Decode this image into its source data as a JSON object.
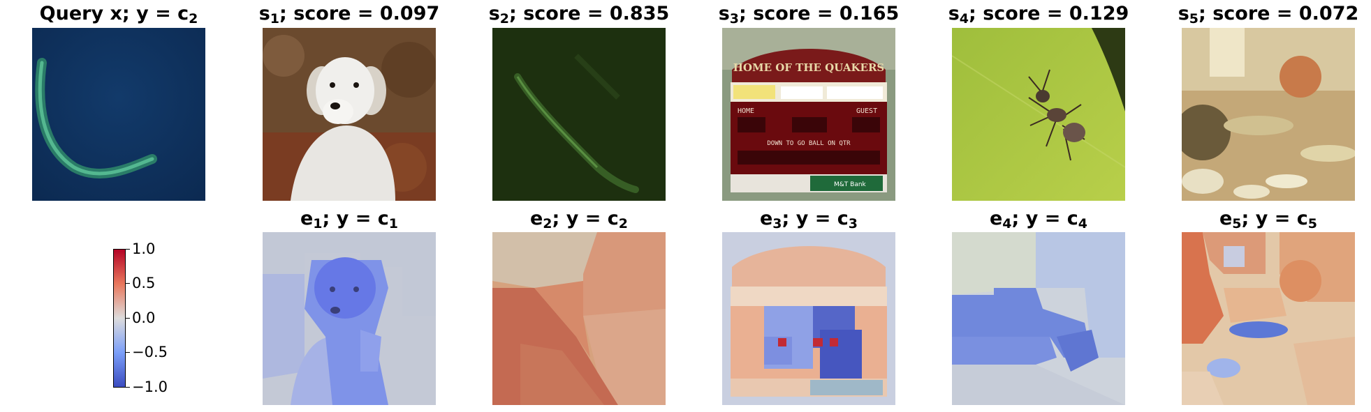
{
  "top_row": [
    {
      "title_main": "Query x; y = c",
      "title_sub": "2",
      "title_tail": ""
    },
    {
      "title_main": "s",
      "title_sub": "1",
      "title_tail": "; score = 0.097"
    },
    {
      "title_main": "s",
      "title_sub": "2",
      "title_tail": "; score = 0.835"
    },
    {
      "title_main": "s",
      "title_sub": "3",
      "title_tail": "; score = 0.165"
    },
    {
      "title_main": "s",
      "title_sub": "4",
      "title_tail": "; score = 0.129"
    },
    {
      "title_main": "s",
      "title_sub": "5",
      "title_tail": "; score = 0.072"
    }
  ],
  "bottom_row": [
    {
      "title_main": "e",
      "title_sub": "1",
      "title_mid": "; y = c",
      "title_sub2": "1"
    },
    {
      "title_main": "e",
      "title_sub": "2",
      "title_mid": "; y = c",
      "title_sub2": "2"
    },
    {
      "title_main": "e",
      "title_sub": "3",
      "title_mid": "; y = c",
      "title_sub2": "3"
    },
    {
      "title_main": "e",
      "title_sub": "4",
      "title_mid": "; y = c",
      "title_sub2": "4"
    },
    {
      "title_main": "e",
      "title_sub": "5",
      "title_mid": "; y = c",
      "title_sub2": "5"
    }
  ],
  "scoreboard": {
    "banner": "HOME OF THE QUAKERS",
    "home": "HOME",
    "guest": "GUEST",
    "row_labels": "DOWN  TO GO  BALL ON  QTR",
    "sponsor": "M&T Bank"
  },
  "colorbar": {
    "ticks": [
      "1.0",
      "0.5",
      "0.0",
      "−0.5",
      "−1.0"
    ],
    "colormap": [
      "#b40426",
      "#e9785d",
      "#dddcdc",
      "#7b9ff9",
      "#3b4cc0"
    ]
  }
}
